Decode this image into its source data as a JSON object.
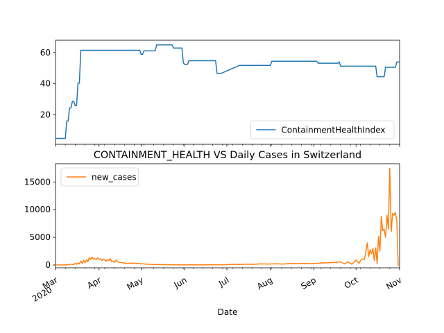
{
  "chart_data": [
    {
      "type": "line",
      "title": "",
      "ylim": [
        1,
        68
      ],
      "yticks": [
        20,
        40,
        60
      ],
      "grid": false,
      "legend_position": "lower-right",
      "series": [
        {
          "name": "ContainmentHealthIndex",
          "color": "#1f77b4",
          "x": [
            "2020-03-01",
            "2020-03-08",
            "2020-03-09",
            "2020-03-10",
            "2020-03-11",
            "2020-03-12",
            "2020-03-13",
            "2020-03-14",
            "2020-03-15",
            "2020-03-16",
            "2020-03-17",
            "2020-03-18",
            "2020-03-19",
            "2020-03-20",
            "2020-03-21",
            "2020-03-22",
            "2020-04-30",
            "2020-05-01",
            "2020-05-02",
            "2020-05-03",
            "2020-05-11",
            "2020-05-12",
            "2020-05-23",
            "2020-05-24",
            "2020-05-30",
            "2020-05-31",
            "2020-06-01",
            "2020-06-02",
            "2020-06-03",
            "2020-06-04",
            "2020-06-05",
            "2020-06-13",
            "2020-06-14",
            "2020-06-23",
            "2020-06-24",
            "2020-06-25",
            "2020-06-26",
            "2020-06-27",
            "2020-07-10",
            "2020-08-01",
            "2020-08-02",
            "2020-09-03",
            "2020-09-04",
            "2020-09-18",
            "2020-09-19",
            "2020-09-20",
            "2020-10-15",
            "2020-10-16",
            "2020-10-21",
            "2020-10-22",
            "2020-10-29",
            "2020-10-30",
            "2020-11-01"
          ],
          "y": [
            4.8,
            4.8,
            16,
            16,
            24.4,
            24.4,
            28.5,
            28.5,
            25.9,
            25.9,
            40.3,
            40.3,
            61.5,
            61.5,
            61.5,
            61.5,
            61.5,
            58.9,
            58.9,
            61.2,
            61.2,
            65,
            65,
            63,
            63,
            53.5,
            52.5,
            52.5,
            52.5,
            54.8,
            54.8,
            54.8,
            54.8,
            54.8,
            46.7,
            46.7,
            46.7,
            46.7,
            51.8,
            51.8,
            54.5,
            54.5,
            53.2,
            53.2,
            54,
            51.3,
            51.3,
            44.5,
            44.5,
            50.6,
            50.6,
            54,
            54
          ]
        }
      ]
    },
    {
      "type": "line",
      "title": "CONTAINMENT_HEALTH VS Daily Cases in Switzerland",
      "xlabel": "Date",
      "ylim": [
        -500,
        18300
      ],
      "yticks": [
        0,
        5000,
        10000,
        15000
      ],
      "xlim": [
        "2020-03-01",
        "2020-11-01"
      ],
      "xticks": [
        {
          "date": "2020-03-01",
          "label": "Mar\n2020"
        },
        {
          "date": "2020-04-01",
          "label": "Apr"
        },
        {
          "date": "2020-05-01",
          "label": "May"
        },
        {
          "date": "2020-06-01",
          "label": "Jun"
        },
        {
          "date": "2020-07-01",
          "label": "Jul"
        },
        {
          "date": "2020-08-01",
          "label": "Aug"
        },
        {
          "date": "2020-09-01",
          "label": "Sep"
        },
        {
          "date": "2020-10-01",
          "label": "Oct"
        },
        {
          "date": "2020-11-01",
          "label": "Nov"
        }
      ],
      "grid": false,
      "legend_position": "upper-left",
      "series": [
        {
          "name": "new_cases",
          "color": "#ff7f0e",
          "x": [
            "2020-03-01",
            "2020-03-05",
            "2020-03-08",
            "2020-03-10",
            "2020-03-12",
            "2020-03-14",
            "2020-03-15",
            "2020-03-16",
            "2020-03-17",
            "2020-03-18",
            "2020-03-19",
            "2020-03-20",
            "2020-03-21",
            "2020-03-22",
            "2020-03-23",
            "2020-03-24",
            "2020-03-25",
            "2020-03-26",
            "2020-03-27",
            "2020-03-28",
            "2020-03-29",
            "2020-03-30",
            "2020-03-31",
            "2020-04-01",
            "2020-04-02",
            "2020-04-03",
            "2020-04-04",
            "2020-04-05",
            "2020-04-06",
            "2020-04-07",
            "2020-04-08",
            "2020-04-09",
            "2020-04-10",
            "2020-04-11",
            "2020-04-12",
            "2020-04-13",
            "2020-04-15",
            "2020-04-18",
            "2020-04-21",
            "2020-04-25",
            "2020-04-30",
            "2020-05-05",
            "2020-05-10",
            "2020-05-15",
            "2020-05-20",
            "2020-06-01",
            "2020-06-15",
            "2020-07-01",
            "2020-07-05",
            "2020-07-10",
            "2020-07-15",
            "2020-07-20",
            "2020-07-25",
            "2020-07-30",
            "2020-08-05",
            "2020-08-10",
            "2020-08-15",
            "2020-08-20",
            "2020-08-25",
            "2020-08-30",
            "2020-09-05",
            "2020-09-10",
            "2020-09-15",
            "2020-09-20",
            "2020-09-23",
            "2020-09-25",
            "2020-09-28",
            "2020-10-01",
            "2020-10-03",
            "2020-10-05",
            "2020-10-07",
            "2020-10-09",
            "2020-10-10",
            "2020-10-11",
            "2020-10-12",
            "2020-10-13",
            "2020-10-14",
            "2020-10-15",
            "2020-10-16",
            "2020-10-17",
            "2020-10-18",
            "2020-10-19",
            "2020-10-20",
            "2020-10-21",
            "2020-10-22",
            "2020-10-23",
            "2020-10-24",
            "2020-10-25",
            "2020-10-26",
            "2020-10-27",
            "2020-10-28",
            "2020-10-29",
            "2020-10-30",
            "2020-10-31",
            "2020-11-01"
          ],
          "y": [
            0,
            10,
            20,
            50,
            150,
            80,
            300,
            120,
            400,
            200,
            700,
            300,
            850,
            400,
            950,
            600,
            1300,
            1000,
            1450,
            1100,
            1150,
            1000,
            1300,
            1000,
            1150,
            800,
            1100,
            900,
            700,
            1000,
            800,
            1150,
            600,
            700,
            500,
            900,
            500,
            400,
            300,
            350,
            250,
            150,
            100,
            80,
            50,
            30,
            40,
            50,
            120,
            100,
            150,
            130,
            200,
            180,
            220,
            180,
            280,
            250,
            300,
            250,
            350,
            400,
            450,
            550,
            200,
            600,
            150,
            900,
            300,
            1100,
            1000,
            4000,
            1500,
            2800,
            2000,
            3000,
            800,
            3100,
            200,
            5200,
            2500,
            8800,
            6200,
            6500,
            5000,
            9000,
            6500,
            17500,
            6000,
            9300,
            9000,
            9500,
            8000,
            0,
            0
          ]
        }
      ]
    }
  ]
}
